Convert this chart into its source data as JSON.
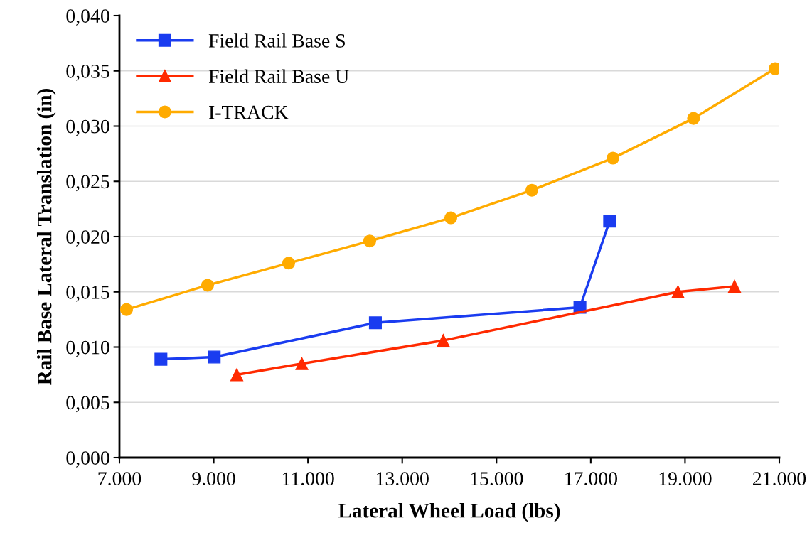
{
  "chart_data": {
    "type": "line",
    "xlabel": "Lateral Wheel Load (lbs)",
    "ylabel": "Rail Base Lateral Translation (in)",
    "xlim": [
      7000,
      21000
    ],
    "ylim": [
      0,
      0.04
    ],
    "xticks": [
      {
        "value": 7000,
        "label": "7.000"
      },
      {
        "value": 9000,
        "label": "9.000"
      },
      {
        "value": 11000,
        "label": "11.000"
      },
      {
        "value": 13000,
        "label": "13.000"
      },
      {
        "value": 15000,
        "label": "15.000"
      },
      {
        "value": 17000,
        "label": "17.000"
      },
      {
        "value": 19000,
        "label": "19.000"
      },
      {
        "value": 21000,
        "label": "21.000"
      }
    ],
    "yticks": [
      {
        "value": 0,
        "label": "0,000"
      },
      {
        "value": 0.005,
        "label": "0,005"
      },
      {
        "value": 0.01,
        "label": "0,010"
      },
      {
        "value": 0.015,
        "label": "0,015"
      },
      {
        "value": 0.02,
        "label": "0,020"
      },
      {
        "value": 0.025,
        "label": "0,025"
      },
      {
        "value": 0.03,
        "label": "0,030"
      },
      {
        "value": 0.035,
        "label": "0,035"
      },
      {
        "value": 0.04,
        "label": "0,040"
      }
    ],
    "grid": "y",
    "legend": "top left",
    "line_style": "solid",
    "series": [
      {
        "name": "Field Rail Base S",
        "color": "#1a3cf0",
        "marker": "square",
        "x": [
          7880,
          9010,
          12430,
          16770,
          17400
        ],
        "values": [
          0.0089,
          0.0091,
          0.0122,
          0.0136,
          0.0214
        ]
      },
      {
        "name": "Field Rail Base U",
        "color": "#ff2a00",
        "marker": "triangle",
        "x": [
          9490,
          10870,
          13870,
          18850,
          20050
        ],
        "values": [
          0.0075,
          0.0085,
          0.0106,
          0.015,
          0.0155
        ]
      },
      {
        "name": "I-TRACK",
        "color": "#ffab00",
        "marker": "circle",
        "x": [
          7150,
          8870,
          10590,
          12310,
          14030,
          15750,
          17470,
          19180,
          20910
        ],
        "values": [
          0.0134,
          0.0156,
          0.0176,
          0.0196,
          0.0217,
          0.0242,
          0.0271,
          0.0307,
          0.0352
        ]
      }
    ]
  }
}
